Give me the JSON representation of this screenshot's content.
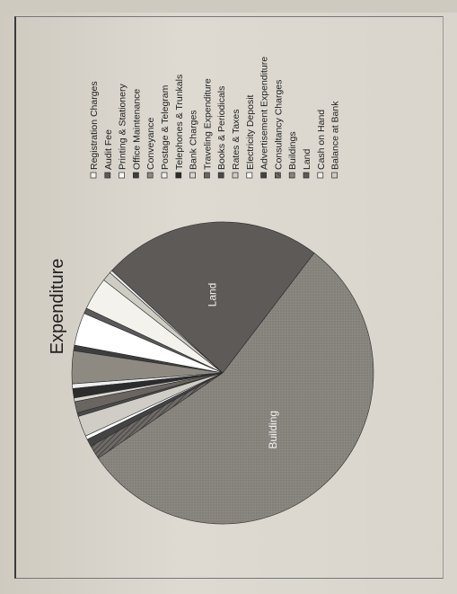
{
  "chart_data": {
    "type": "pie",
    "title": "Expenditure",
    "categories": [
      "Registration Charges",
      "Audit Fee",
      "Printing & Stationery",
      "Office Maintenance",
      "Conveyance",
      "Postage & Telegram",
      "Telephones & Trunkals",
      "Bank Charges",
      "Traveling Expenditure",
      "Books & Periodicals",
      "Rates & Taxes",
      "Electricity Deposit",
      "Advertisement Expenditure",
      "Consultancy Charges",
      "Buildings",
      "Land",
      "Cash on Hand",
      "Balance at Bank"
    ],
    "values": [
      3.5,
      0.6,
      3.5,
      0.6,
      3.5,
      0.5,
      1.0,
      0.4,
      1.2,
      0.4,
      2.2,
      0.4,
      0.8,
      1.5,
      55.0,
      23.5,
      0.3,
      1.0
    ],
    "slice_labels": {
      "Buildings": "Building",
      "Land": "Land"
    },
    "colors": [
      "#f4f2ec",
      "#5a5a5a",
      "#ffffff",
      "#3e3e3e",
      "#8e8a82",
      "#eeeeee",
      "#2c2c2c",
      "#d8d6d0",
      "#6a6560",
      "#4a4a4a",
      "#d0cdc6",
      "#ffffff",
      "#444444",
      "#555555",
      "#827e78",
      "#5e5a58",
      "#eeeeee",
      "#cfccc4"
    ],
    "legend_position": "right"
  }
}
